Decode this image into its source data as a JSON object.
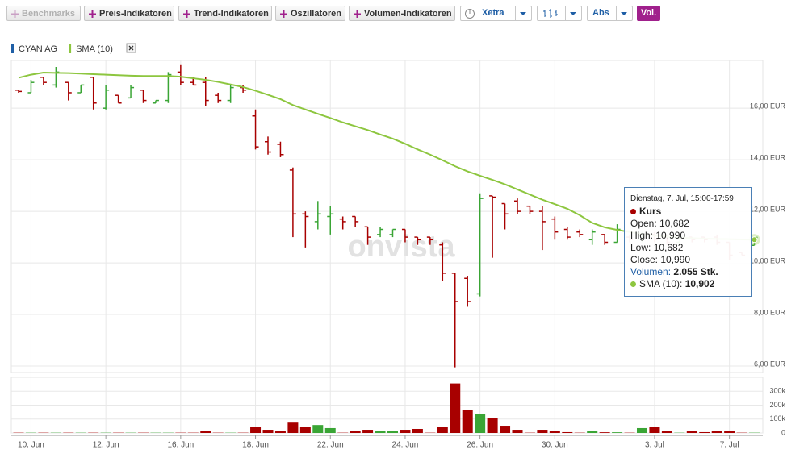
{
  "toolbar": {
    "benchmarks": "Benchmarks",
    "buttons": [
      "Preis-Indikatoren",
      "Trend-Indikatoren",
      "Oszillatoren",
      "Volumen-Indikatoren"
    ],
    "exchange": "Xetra",
    "scale": "Abs",
    "volume_toggle": "Vol."
  },
  "watermark": "onvista",
  "chart_data": [
    {
      "type": "ohlc",
      "up_color": "#3aa535",
      "down_color": "#a80000",
      "ylim": [
        5.75,
        17.85
      ],
      "yticks": [
        {
          "value": 6,
          "label": "6,00 EUR"
        },
        {
          "value": 8,
          "label": "8,00 EUR"
        },
        {
          "value": 10,
          "label": "10,00 EUR"
        },
        {
          "value": 12,
          "label": "12,00 EUR"
        },
        {
          "value": 14,
          "label": "14,00 EUR"
        },
        {
          "value": 16,
          "label": "16,00 EUR"
        }
      ],
      "grid": true,
      "series": [
        {
          "name": "CYAN AG",
          "color": "#1f5fa6",
          "open": [
            16.7,
            16.6,
            17.2,
            16.9,
            17.0,
            16.6,
            17.2,
            16.0,
            16.5,
            16.4,
            16.7,
            16.2,
            16.3,
            17.4,
            17.0,
            17.0,
            16.5,
            16.3,
            16.8,
            15.7,
            14.7,
            14.6,
            13.6,
            11.9,
            11.6,
            11.8,
            11.7,
            11.8,
            11.4,
            11.1,
            11.1,
            11.3,
            11.0,
            11.0,
            10.7,
            9.6,
            9.4,
            8.8,
            12.6,
            12.3,
            12.4,
            12.2,
            12.0,
            11.7,
            11.3,
            11.2,
            10.9,
            11.1,
            10.8,
            11.0,
            10.9,
            11.1,
            11.0,
            10.8,
            11.0,
            11.0,
            11.0,
            10.8,
            10.4,
            10.682
          ],
          "high": [
            16.7,
            17.1,
            17.2,
            17.6,
            17.0,
            16.9,
            17.2,
            16.9,
            16.5,
            16.9,
            16.7,
            16.3,
            17.4,
            17.7,
            17.2,
            17.2,
            16.6,
            16.9,
            16.9,
            15.95,
            14.9,
            14.7,
            13.7,
            12.0,
            12.4,
            12.2,
            11.8,
            11.8,
            11.4,
            11.4,
            11.3,
            11.3,
            11.0,
            11.0,
            10.8,
            9.6,
            9.5,
            12.7,
            12.6,
            12.3,
            12.5,
            12.2,
            12.2,
            11.8,
            11.4,
            11.3,
            11.3,
            11.1,
            11.5,
            11.1,
            11.2,
            11.2,
            11.1,
            11.0,
            11.0,
            11.0,
            11.1,
            10.8,
            10.4,
            10.99
          ],
          "low": [
            16.6,
            16.6,
            16.9,
            16.8,
            16.3,
            16.6,
            15.95,
            15.95,
            16.2,
            16.4,
            16.2,
            16.2,
            16.2,
            16.9,
            16.9,
            16.1,
            16.2,
            16.2,
            16.6,
            14.4,
            14.2,
            14.1,
            11.0,
            10.6,
            11.3,
            11.1,
            11.3,
            11.4,
            10.7,
            11.0,
            11.0,
            10.8,
            10.7,
            10.7,
            9.3,
            5.95,
            8.3,
            8.7,
            10.2,
            11.3,
            11.9,
            11.9,
            10.5,
            10.9,
            10.9,
            11.0,
            10.7,
            10.7,
            10.8,
            10.8,
            10.8,
            10.8,
            10.7,
            10.7,
            10.8,
            10.8,
            10.7,
            10.1,
            10.3,
            10.682
          ],
          "close": [
            16.65,
            17.0,
            17.0,
            17.4,
            16.6,
            16.9,
            16.2,
            16.7,
            16.2,
            16.8,
            16.3,
            16.3,
            17.3,
            17.0,
            16.9,
            16.3,
            16.3,
            16.8,
            16.7,
            14.5,
            14.3,
            14.2,
            11.9,
            11.8,
            11.9,
            11.9,
            11.6,
            11.6,
            11.0,
            11.3,
            11.3,
            11.0,
            10.9,
            10.9,
            9.6,
            8.5,
            8.5,
            12.5,
            12.55,
            11.9,
            12.0,
            12.0,
            11.6,
            11.2,
            11.0,
            11.1,
            11.2,
            10.8,
            11.3,
            10.9,
            11.1,
            10.9,
            10.8,
            11.0,
            10.9,
            10.9,
            10.8,
            10.3,
            10.3,
            10.99
          ]
        },
        {
          "name": "SMA (10)",
          "color": "#8dc63f",
          "values": [
            17.18,
            17.3,
            17.38,
            17.37,
            17.36,
            17.34,
            17.32,
            17.3,
            17.28,
            17.26,
            17.25,
            17.25,
            17.25,
            17.22,
            17.16,
            17.1,
            17.02,
            16.92,
            16.82,
            16.68,
            16.52,
            16.35,
            16.12,
            15.95,
            15.78,
            15.62,
            15.45,
            15.3,
            15.15,
            14.98,
            14.82,
            14.62,
            14.4,
            14.2,
            13.98,
            13.75,
            13.55,
            13.38,
            13.22,
            13.05,
            12.85,
            12.65,
            12.45,
            12.28,
            12.1,
            11.85,
            11.55,
            11.38,
            11.28,
            11.2,
            11.12,
            11.06,
            11.02,
            10.98,
            10.96,
            10.94,
            10.93,
            10.92,
            10.91,
            10.902
          ]
        }
      ]
    },
    {
      "type": "bar",
      "categories": [
        null,
        "10. Jun",
        null,
        null,
        null,
        null,
        null,
        "12. Jun",
        null,
        null,
        null,
        null,
        null,
        "16. Jun",
        null,
        null,
        null,
        null,
        null,
        "18. Jun",
        null,
        null,
        null,
        null,
        null,
        "22. Jun",
        null,
        null,
        null,
        null,
        null,
        "24. Jun",
        null,
        null,
        null,
        null,
        null,
        "26. Jun",
        null,
        null,
        null,
        null,
        null,
        "30. Jun",
        null,
        null,
        null,
        null,
        null,
        null,
        null,
        "3. Jul",
        null,
        null,
        null,
        null,
        null,
        "7. Jul",
        null,
        null
      ],
      "values": [
        2000,
        2000,
        2000,
        2000,
        2000,
        2000,
        2000,
        2000,
        2000,
        2000,
        2000,
        2000,
        2000,
        2000,
        2000,
        17000,
        2000,
        2000,
        2000,
        46000,
        23000,
        12000,
        80000,
        46000,
        57000,
        35000,
        2000,
        17000,
        23000,
        12000,
        17000,
        23000,
        29000,
        2000,
        46000,
        356000,
        167000,
        138000,
        109000,
        52000,
        23000,
        2000,
        23000,
        12000,
        6000,
        2000,
        17000,
        5000,
        5000,
        2000,
        35000,
        46000,
        12000,
        2000,
        12000,
        6000,
        12000,
        17000,
        2000,
        2055
      ],
      "ylim": [
        0,
        400000
      ],
      "yticks": [
        0,
        {
          "value": 100000,
          "label": "100k"
        },
        {
          "value": 200000,
          "label": "200k"
        },
        {
          "value": 300000,
          "label": "300k"
        }
      ],
      "grid": true
    }
  ],
  "tooltip": {
    "date": "Dienstag, 7. Jul, 15:00-17:59",
    "title": "Kurs",
    "rows": [
      {
        "label": "Open:",
        "value": "10,682"
      },
      {
        "label": "High:",
        "value": "10,990"
      },
      {
        "label": "Low:",
        "value": "10,682"
      },
      {
        "label": "Close:",
        "value": "10,990"
      }
    ],
    "volume": {
      "label": "Volumen:",
      "value": "2.055 Stk."
    },
    "sma": {
      "label": "SMA (10):",
      "value": "10,902"
    }
  }
}
